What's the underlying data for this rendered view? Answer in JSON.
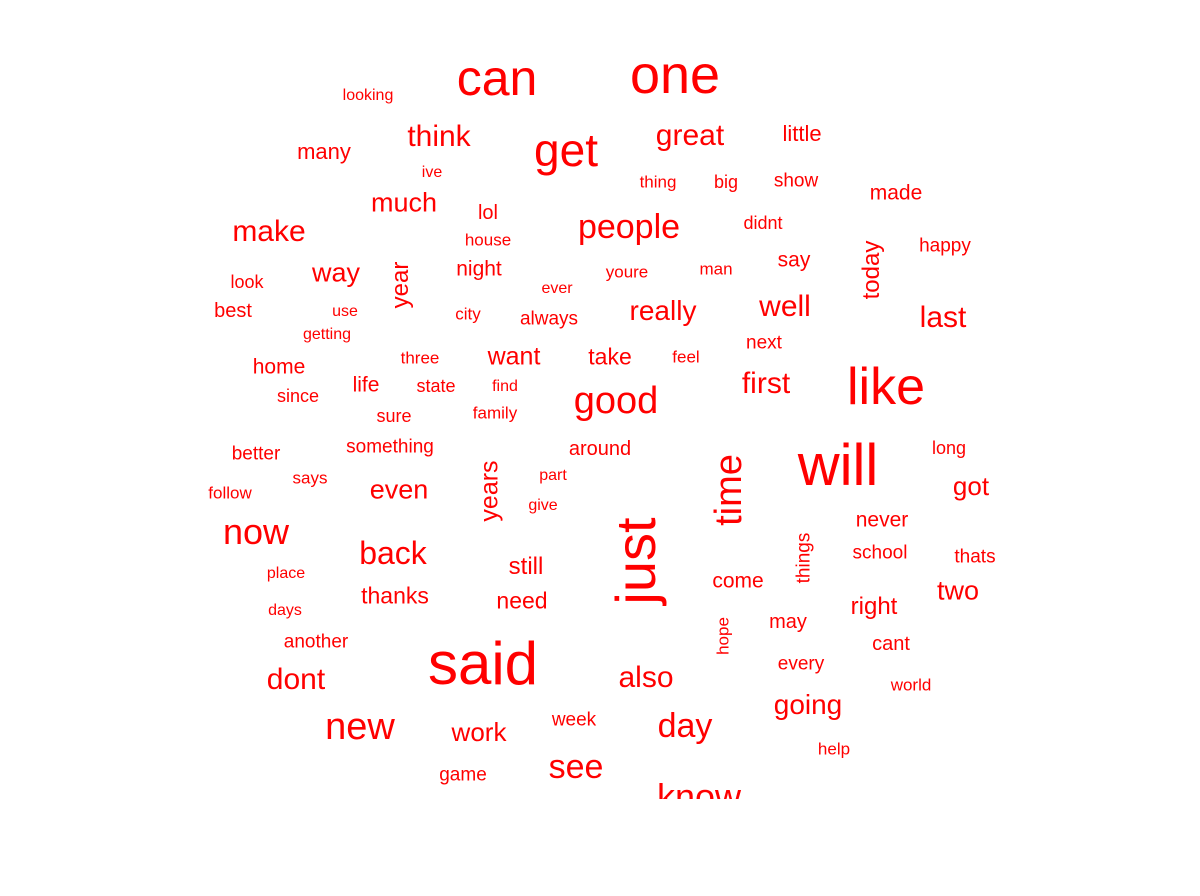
{
  "color": "#ff0000",
  "words": [
    {
      "text": "can"
    },
    {
      "text": "one"
    },
    {
      "text": "looking"
    },
    {
      "text": "think"
    },
    {
      "text": "get"
    },
    {
      "text": "great"
    },
    {
      "text": "little"
    },
    {
      "text": "many"
    },
    {
      "text": "ive"
    },
    {
      "text": "thing"
    },
    {
      "text": "big"
    },
    {
      "text": "show"
    },
    {
      "text": "made"
    },
    {
      "text": "much"
    },
    {
      "text": "lol"
    },
    {
      "text": "make"
    },
    {
      "text": "people"
    },
    {
      "text": "didnt"
    },
    {
      "text": "house"
    },
    {
      "text": "happy"
    },
    {
      "text": "today"
    },
    {
      "text": "way"
    },
    {
      "text": "year"
    },
    {
      "text": "night"
    },
    {
      "text": "youre"
    },
    {
      "text": "man"
    },
    {
      "text": "say"
    },
    {
      "text": "look"
    },
    {
      "text": "ever"
    },
    {
      "text": "best"
    },
    {
      "text": "use"
    },
    {
      "text": "city"
    },
    {
      "text": "always"
    },
    {
      "text": "really"
    },
    {
      "text": "well"
    },
    {
      "text": "last"
    },
    {
      "text": "getting"
    },
    {
      "text": "three"
    },
    {
      "text": "want"
    },
    {
      "text": "take"
    },
    {
      "text": "feel"
    },
    {
      "text": "next"
    },
    {
      "text": "home"
    },
    {
      "text": "like"
    },
    {
      "text": "first"
    },
    {
      "text": "life"
    },
    {
      "text": "state"
    },
    {
      "text": "find"
    },
    {
      "text": "since"
    },
    {
      "text": "good"
    },
    {
      "text": "sure"
    },
    {
      "text": "family"
    },
    {
      "text": "something"
    },
    {
      "text": "around"
    },
    {
      "text": "better"
    },
    {
      "text": "long"
    },
    {
      "text": "will"
    },
    {
      "text": "time"
    },
    {
      "text": "says"
    },
    {
      "text": "part"
    },
    {
      "text": "got"
    },
    {
      "text": "follow"
    },
    {
      "text": "even"
    },
    {
      "text": "years"
    },
    {
      "text": "give"
    },
    {
      "text": "now"
    },
    {
      "text": "never"
    },
    {
      "text": "just"
    },
    {
      "text": "back"
    },
    {
      "text": "school"
    },
    {
      "text": "things"
    },
    {
      "text": "thats"
    },
    {
      "text": "still"
    },
    {
      "text": "place"
    },
    {
      "text": "come"
    },
    {
      "text": "two"
    },
    {
      "text": "thanks"
    },
    {
      "text": "need"
    },
    {
      "text": "right"
    },
    {
      "text": "days"
    },
    {
      "text": "may"
    },
    {
      "text": "hope"
    },
    {
      "text": "another"
    },
    {
      "text": "cant"
    },
    {
      "text": "said"
    },
    {
      "text": "every"
    },
    {
      "text": "also"
    },
    {
      "text": "dont"
    },
    {
      "text": "world"
    },
    {
      "text": "going"
    },
    {
      "text": "new"
    },
    {
      "text": "week"
    },
    {
      "text": "work"
    },
    {
      "text": "day"
    },
    {
      "text": "help"
    },
    {
      "text": "see"
    },
    {
      "text": "game"
    },
    {
      "text": "know"
    }
  ]
}
